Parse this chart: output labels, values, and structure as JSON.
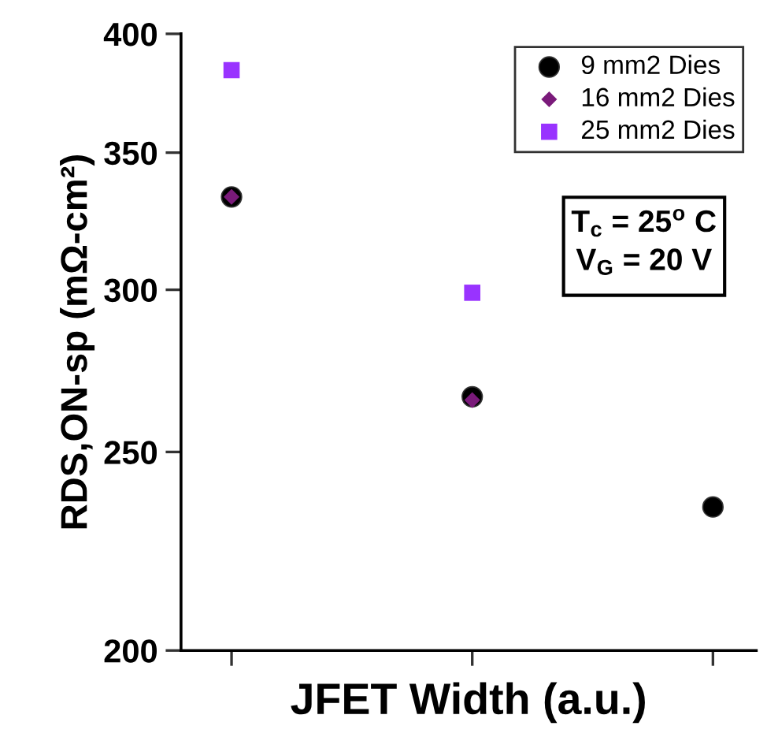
{
  "chart_data": {
    "type": "scatter",
    "xlabel": "JFET Width (a.u.)",
    "ylabel": "RDS,ON-sp (mΩ-cm²)",
    "categories": [
      null,
      null,
      null
    ],
    "series": [
      {
        "name": "9 mm2 Dies",
        "color": "#000000",
        "marker": "circle",
        "values": [
          333,
          266,
          235
        ]
      },
      {
        "name": "16 mm2 Dies",
        "color": "#7a1a7a",
        "marker": "diamond",
        "values": [
          333,
          265,
          null
        ]
      },
      {
        "name": "25 mm2 Dies",
        "color": "#9933ff",
        "marker": "square",
        "values": [
          384,
          299,
          null
        ]
      }
    ],
    "log": "y",
    "ylim": [
      200,
      400
    ],
    "yticks": [
      200,
      250,
      300,
      350,
      400
    ],
    "grid": false,
    "legend": "top right",
    "annotations": [
      "T$_{c}$ = 25$^{o}$ C",
      "V$_{G}$ = 20 V"
    ]
  }
}
